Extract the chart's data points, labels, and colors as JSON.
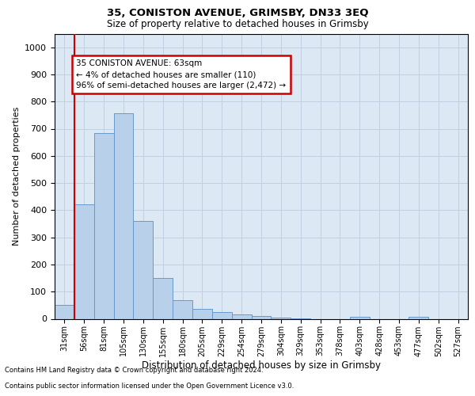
{
  "title1": "35, CONISTON AVENUE, GRIMSBY, DN33 3EQ",
  "title2": "Size of property relative to detached houses in Grimsby",
  "xlabel": "Distribution of detached houses by size in Grimsby",
  "ylabel": "Number of detached properties",
  "footer1": "Contains HM Land Registry data © Crown copyright and database right 2024.",
  "footer2": "Contains public sector information licensed under the Open Government Licence v3.0.",
  "bar_labels": [
    "31sqm",
    "56sqm",
    "81sqm",
    "105sqm",
    "130sqm",
    "155sqm",
    "180sqm",
    "205sqm",
    "229sqm",
    "254sqm",
    "279sqm",
    "304sqm",
    "329sqm",
    "353sqm",
    "378sqm",
    "403sqm",
    "428sqm",
    "453sqm",
    "477sqm",
    "502sqm",
    "527sqm"
  ],
  "bar_values": [
    50,
    422,
    685,
    758,
    360,
    150,
    70,
    37,
    25,
    15,
    10,
    5,
    1,
    0,
    0,
    8,
    0,
    0,
    8,
    0,
    0
  ],
  "bar_color": "#b8d0ea",
  "bar_edge_color": "#6699cc",
  "vline_color": "#cc0000",
  "annotation_line1": "35 CONISTON AVENUE: 63sqm",
  "annotation_line2": "← 4% of detached houses are smaller (110)",
  "annotation_line3": "96% of semi-detached houses are larger (2,472) →",
  "annotation_box_color": "white",
  "annotation_box_edge": "#cc0000",
  "ylim": [
    0,
    1050
  ],
  "yticks": [
    0,
    100,
    200,
    300,
    400,
    500,
    600,
    700,
    800,
    900,
    1000
  ],
  "grid_color": "#c0d0e0",
  "bg_color": "#dce8f4",
  "fig_width": 6.0,
  "fig_height": 5.0,
  "dpi": 100
}
